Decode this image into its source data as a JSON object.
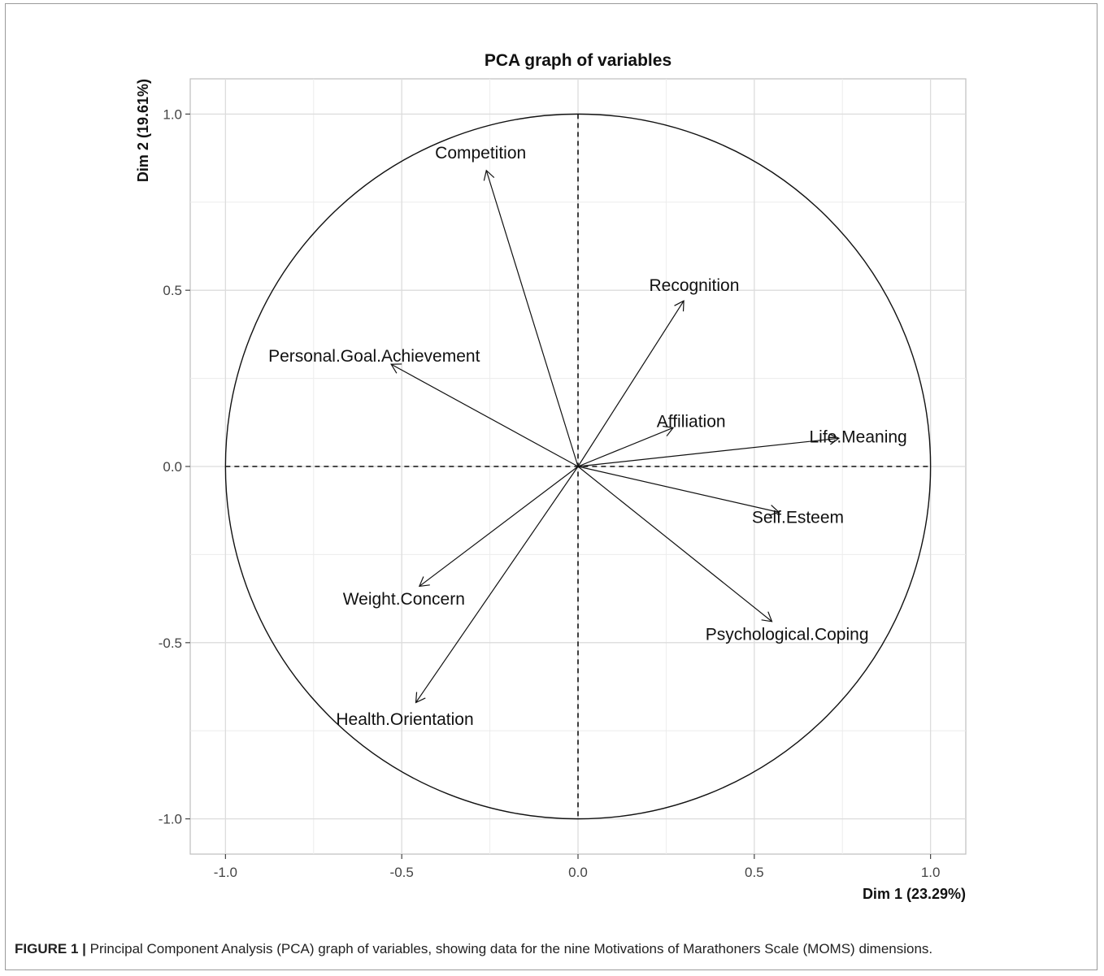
{
  "chart_data": {
    "type": "scatter",
    "subtype": "pca-variable-correlation-circle",
    "title": "PCA graph of variables",
    "xlabel": "Dim 1 (23.29%)",
    "ylabel": "Dim 2 (19.61%)",
    "xlim": [
      -1.1,
      1.1
    ],
    "ylim": [
      -1.1,
      1.1
    ],
    "xticks": [
      -1.0,
      -0.5,
      0.0,
      0.5,
      1.0
    ],
    "yticks": [
      -1.0,
      -0.5,
      0.0,
      0.5,
      1.0
    ],
    "xtick_labels": [
      "-1.0",
      "-0.5",
      "0.0",
      "0.5",
      "1.0"
    ],
    "ytick_labels": [
      "-1.0",
      "-0.5",
      "0.0",
      "0.5",
      "1.0"
    ],
    "grid": true,
    "unit_circle": true,
    "variables": [
      {
        "name": "Competition",
        "x": -0.26,
        "y": 0.84
      },
      {
        "name": "Recognition",
        "x": 0.3,
        "y": 0.47
      },
      {
        "name": "Personal.Goal.Achievement",
        "x": -0.53,
        "y": 0.29
      },
      {
        "name": "Affiliation",
        "x": 0.27,
        "y": 0.11
      },
      {
        "name": "Life.Meaning",
        "x": 0.74,
        "y": 0.08
      },
      {
        "name": "Self.Esteem",
        "x": 0.57,
        "y": -0.13
      },
      {
        "name": "Weight.Concern",
        "x": -0.45,
        "y": -0.34
      },
      {
        "name": "Psychological.Coping",
        "x": 0.55,
        "y": -0.44
      },
      {
        "name": "Health.Orientation",
        "x": -0.46,
        "y": -0.67
      }
    ]
  },
  "caption": {
    "label": "FIGURE 1 |",
    "text": " Principal Component Analysis (PCA) graph of variables, showing data for the nine Motivations of Marathoners Scale (MOMS) dimensions."
  }
}
